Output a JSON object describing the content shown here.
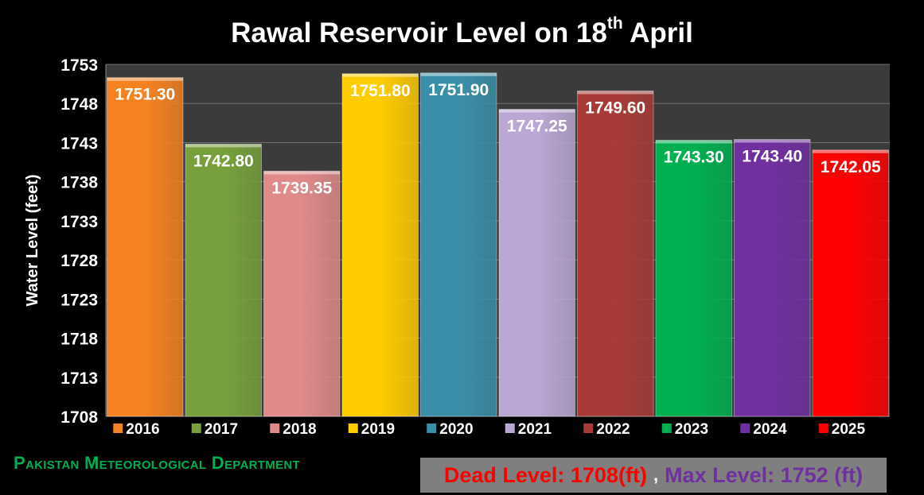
{
  "title": {
    "main": "Rawal Reservoir Level on 18",
    "sup": "th",
    "tail": " April"
  },
  "footer": {
    "department": "Pakistan Meteorological Department",
    "dead_level": "Dead Level: 1708(ft)",
    "separator": ",",
    "max_level": "Max Level: 1752 (ft)"
  },
  "chart_data": {
    "type": "bar",
    "title": "Rawal Reservoir Level on 18th April",
    "ylabel": "Water Level  (feet)",
    "xlabel": "",
    "ylim": [
      1708,
      1753
    ],
    "yticks": [
      1708,
      1713,
      1718,
      1723,
      1728,
      1733,
      1738,
      1743,
      1748,
      1753
    ],
    "grid": true,
    "legend_position": "bottom",
    "categories": [
      "2016",
      "2017",
      "2018",
      "2019",
      "2020",
      "2021",
      "2022",
      "2023",
      "2024",
      "2025"
    ],
    "values": [
      1751.3,
      1742.8,
      1739.35,
      1751.8,
      1751.9,
      1747.25,
      1749.6,
      1743.3,
      1743.4,
      1742.05
    ],
    "value_labels": [
      "1751.30",
      "1742.80",
      "1739.35",
      "1751.80",
      "1751.90",
      "1747.25",
      "1749.60",
      "1743.30",
      "1743.40",
      "1742.05"
    ],
    "colors": [
      "#f58220",
      "#77a03c",
      "#e08a8a",
      "#ffcc00",
      "#3a8fa8",
      "#bba7d4",
      "#a83b38",
      "#00b050",
      "#7030a0",
      "#ff0000"
    ]
  }
}
